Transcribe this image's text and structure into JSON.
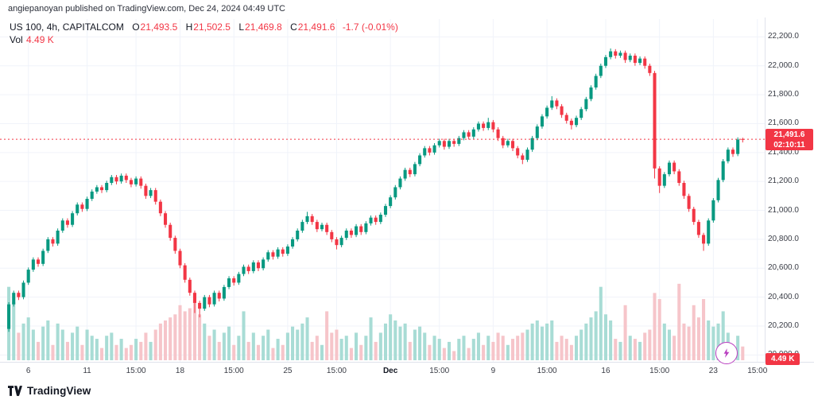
{
  "page": {
    "pub_line": "angiepanoyan published on TradingView.com, Dec 24, 2024 04:49 UTC"
  },
  "legend": {
    "symbol_line": "US 100, 4h, CAPITALCOM",
    "o_label": "O",
    "o": "21,493.5",
    "h_label": "H",
    "h": "21,502.5",
    "l_label": "L",
    "l": "21,469.8",
    "c_label": "C",
    "c": "21,491.6",
    "change": "-1.7 (-0.01%)",
    "vol_label": "Vol",
    "vol_value": "4.49 K"
  },
  "price_axis": {
    "ticks": [
      "22,200.0",
      "22,000.0",
      "21,800.0",
      "21,600.0",
      "21,400.0",
      "21,200.0",
      "21,000.0",
      "20,800.0",
      "20,600.0",
      "20,400.0",
      "20,200.0",
      "20,000.0"
    ]
  },
  "price_marker": {
    "price": "21,491.6",
    "countdown": "02:10:11"
  },
  "volume_marker": "4.49 K",
  "footer": {
    "brand": "TradingView"
  },
  "colors": {
    "up": "#089981",
    "down": "#f23645",
    "vol_up": "#a8dcd5",
    "vol_down": "#f6c5ca",
    "grid": "#f0f3fa",
    "border": "#e0e3eb",
    "axis_text": "#131722",
    "flash_purple": "#b93ec0",
    "marker_red": "#f23645"
  },
  "chart_data": {
    "type": "candlestick+volume",
    "title": "US 100, 4h, CAPITALCOM",
    "symbol": "US 100",
    "timeframe": "4h",
    "exchange": "CAPITALCOM",
    "last_ohlc": {
      "open": 21493.5,
      "high": 21502.5,
      "low": 21469.8,
      "close": 21491.6,
      "change": -1.7,
      "change_pct": -0.01,
      "volume_k": 4.49
    },
    "price_range": [
      19870,
      22290
    ],
    "y_tick_step": 200,
    "slots": 155,
    "vol_max_k": 26,
    "x_labels": [
      {
        "text": "6",
        "slot": 4
      },
      {
        "text": "11",
        "slot": 16
      },
      {
        "text": "15:00",
        "slot": 26
      },
      {
        "text": "18",
        "slot": 35
      },
      {
        "text": "15:00",
        "slot": 46
      },
      {
        "text": "25",
        "slot": 57
      },
      {
        "text": "15:00",
        "slot": 67
      },
      {
        "text": "Dec",
        "slot": 78,
        "bold": true
      },
      {
        "text": "15:00",
        "slot": 88
      },
      {
        "text": "9",
        "slot": 99
      },
      {
        "text": "15:00",
        "slot": 110
      },
      {
        "text": "16",
        "slot": 122
      },
      {
        "text": "15:00",
        "slot": 133
      },
      {
        "text": "23",
        "slot": 144
      },
      {
        "text": "15:00",
        "slot": 153
      }
    ],
    "candles_format": [
      "open",
      "high",
      "low",
      "close",
      "volume_k"
    ],
    "candles": [
      [
        20180,
        20365,
        20160,
        20350,
        24
      ],
      [
        20350,
        20445,
        20335,
        20430,
        19
      ],
      [
        20430,
        20445,
        20380,
        20400,
        9
      ],
      [
        20400,
        20515,
        20385,
        20500,
        12
      ],
      [
        20500,
        20605,
        20485,
        20590,
        14
      ],
      [
        20590,
        20675,
        20575,
        20660,
        10
      ],
      [
        20660,
        20675,
        20610,
        20630,
        6
      ],
      [
        20630,
        20735,
        20615,
        20720,
        11
      ],
      [
        20720,
        20815,
        20705,
        20800,
        13
      ],
      [
        20800,
        20815,
        20750,
        20770,
        5
      ],
      [
        20770,
        20875,
        20755,
        20860,
        12
      ],
      [
        20860,
        20945,
        20845,
        20930,
        10
      ],
      [
        20930,
        20945,
        20880,
        20900,
        6
      ],
      [
        20900,
        20995,
        20885,
        20980,
        9
      ],
      [
        20980,
        21055,
        20965,
        21040,
        11
      ],
      [
        21040,
        21055,
        20990,
        21010,
        5
      ],
      [
        21010,
        21095,
        20995,
        21080,
        10
      ],
      [
        21080,
        21145,
        21065,
        21130,
        8
      ],
      [
        21130,
        21175,
        21115,
        21160,
        7
      ],
      [
        21160,
        21175,
        21120,
        21140,
        4
      ],
      [
        21140,
        21205,
        21125,
        21190,
        8
      ],
      [
        21190,
        21245,
        21175,
        21230,
        9
      ],
      [
        21230,
        21245,
        21180,
        21200,
        5
      ],
      [
        21200,
        21255,
        21185,
        21240,
        7
      ],
      [
        21240,
        21255,
        21190,
        21210,
        4
      ],
      [
        21210,
        21225,
        21160,
        21180,
        5
      ],
      [
        21180,
        21235,
        21165,
        21220,
        7
      ],
      [
        21220,
        21235,
        21150,
        21170,
        6
      ],
      [
        21170,
        21185,
        21080,
        21100,
        9
      ],
      [
        21100,
        21155,
        21085,
        21140,
        6
      ],
      [
        21140,
        21155,
        21040,
        21060,
        10
      ],
      [
        21060,
        21075,
        20960,
        20980,
        12
      ],
      [
        20980,
        20995,
        20880,
        20900,
        13
      ],
      [
        20900,
        20915,
        20790,
        20810,
        14
      ],
      [
        20810,
        20825,
        20700,
        20720,
        15
      ],
      [
        20720,
        20735,
        20600,
        20620,
        18
      ],
      [
        20620,
        20635,
        20500,
        20520,
        16
      ],
      [
        20520,
        20535,
        20410,
        20430,
        17
      ],
      [
        20430,
        20445,
        20290,
        20360,
        20
      ],
      [
        20360,
        20375,
        20260,
        20320,
        15
      ],
      [
        20320,
        20415,
        20305,
        20400,
        12
      ],
      [
        20400,
        20415,
        20330,
        20350,
        8
      ],
      [
        20350,
        20445,
        20335,
        20430,
        10
      ],
      [
        20430,
        20445,
        20370,
        20390,
        6
      ],
      [
        20390,
        20485,
        20375,
        20470,
        9
      ],
      [
        20470,
        20545,
        20455,
        20530,
        11
      ],
      [
        20530,
        20545,
        20480,
        20500,
        5
      ],
      [
        20500,
        20575,
        20485,
        20560,
        8
      ],
      [
        20560,
        20625,
        20545,
        20610,
        16
      ],
      [
        20610,
        20625,
        20560,
        20580,
        6
      ],
      [
        20580,
        20655,
        20565,
        20640,
        9
      ],
      [
        20640,
        20655,
        20580,
        20600,
        5
      ],
      [
        20600,
        20675,
        20585,
        20660,
        8
      ],
      [
        20660,
        20725,
        20645,
        20710,
        10
      ],
      [
        20710,
        20725,
        20660,
        20680,
        4
      ],
      [
        20680,
        20745,
        20665,
        20730,
        7
      ],
      [
        20730,
        20745,
        20680,
        20700,
        5
      ],
      [
        20700,
        20765,
        20685,
        20750,
        9
      ],
      [
        20750,
        20815,
        20735,
        20800,
        11
      ],
      [
        20800,
        20875,
        20785,
        20860,
        10
      ],
      [
        20860,
        20935,
        20845,
        20920,
        12
      ],
      [
        20920,
        20990,
        20905,
        20960,
        14
      ],
      [
        20960,
        20975,
        20900,
        20920,
        6
      ],
      [
        20920,
        20935,
        20850,
        20870,
        8
      ],
      [
        20870,
        20915,
        20855,
        20900,
        5
      ],
      [
        20900,
        20915,
        20830,
        20850,
        16
      ],
      [
        20850,
        20865,
        20780,
        20800,
        9
      ],
      [
        20800,
        20815,
        20730,
        20760,
        10
      ],
      [
        20760,
        20825,
        20745,
        20810,
        7
      ],
      [
        20810,
        20875,
        20795,
        20860,
        8
      ],
      [
        20860,
        20875,
        20810,
        20830,
        4
      ],
      [
        20830,
        20905,
        20815,
        20890,
        9
      ],
      [
        20890,
        20905,
        20830,
        20850,
        5
      ],
      [
        20850,
        20925,
        20835,
        20910,
        8
      ],
      [
        20910,
        20965,
        20895,
        20950,
        14
      ],
      [
        20950,
        20965,
        20900,
        20920,
        6
      ],
      [
        20920,
        20985,
        20905,
        20970,
        9
      ],
      [
        20970,
        21045,
        20955,
        21030,
        12
      ],
      [
        21030,
        21105,
        21015,
        21090,
        15
      ],
      [
        21090,
        21175,
        21075,
        21160,
        13
      ],
      [
        21160,
        21235,
        21145,
        21220,
        11
      ],
      [
        21220,
        21295,
        21205,
        21280,
        12
      ],
      [
        21280,
        21295,
        21230,
        21250,
        6
      ],
      [
        21250,
        21335,
        21235,
        21320,
        10
      ],
      [
        21320,
        21395,
        21305,
        21380,
        11
      ],
      [
        21380,
        21445,
        21365,
        21430,
        9
      ],
      [
        21430,
        21445,
        21380,
        21400,
        5
      ],
      [
        21400,
        21465,
        21385,
        21450,
        8
      ],
      [
        21450,
        21495,
        21435,
        21480,
        7
      ],
      [
        21480,
        21495,
        21420,
        21440,
        4
      ],
      [
        21440,
        21495,
        21425,
        21480,
        6
      ],
      [
        21480,
        21495,
        21440,
        21460,
        3
      ],
      [
        21460,
        21515,
        21445,
        21500,
        7
      ],
      [
        21500,
        21555,
        21485,
        21540,
        8
      ],
      [
        21540,
        21555,
        21490,
        21510,
        4
      ],
      [
        21510,
        21575,
        21495,
        21560,
        7
      ],
      [
        21560,
        21615,
        21545,
        21600,
        9
      ],
      [
        21600,
        21615,
        21550,
        21570,
        5
      ],
      [
        21570,
        21640,
        21555,
        21610,
        8
      ],
      [
        21610,
        21625,
        21540,
        21560,
        6
      ],
      [
        21560,
        21575,
        21480,
        21500,
        9
      ],
      [
        21500,
        21515,
        21430,
        21450,
        8
      ],
      [
        21450,
        21495,
        21435,
        21480,
        5
      ],
      [
        21480,
        21495,
        21410,
        21430,
        7
      ],
      [
        21430,
        21445,
        21360,
        21380,
        8
      ],
      [
        21380,
        21395,
        21320,
        21350,
        9
      ],
      [
        21350,
        21435,
        21335,
        21420,
        10
      ],
      [
        21420,
        21515,
        21405,
        21500,
        12
      ],
      [
        21500,
        21595,
        21485,
        21580,
        13
      ],
      [
        21580,
        21665,
        21565,
        21650,
        11
      ],
      [
        21650,
        21725,
        21635,
        21710,
        12
      ],
      [
        21710,
        21790,
        21695,
        21760,
        13
      ],
      [
        21760,
        21775,
        21700,
        21720,
        6
      ],
      [
        21720,
        21735,
        21640,
        21660,
        8
      ],
      [
        21660,
        21675,
        21600,
        21620,
        7
      ],
      [
        21620,
        21635,
        21560,
        21590,
        5
      ],
      [
        21590,
        21655,
        21575,
        21640,
        8
      ],
      [
        21640,
        21715,
        21625,
        21700,
        10
      ],
      [
        21700,
        21785,
        21685,
        21770,
        12
      ],
      [
        21770,
        21865,
        21755,
        21850,
        14
      ],
      [
        21850,
        21945,
        21835,
        21930,
        16
      ],
      [
        21930,
        22015,
        21915,
        22000,
        24
      ],
      [
        22000,
        22075,
        21985,
        22060,
        15
      ],
      [
        22060,
        22120,
        22045,
        22100,
        13
      ],
      [
        22100,
        22115,
        22050,
        22070,
        7
      ],
      [
        22070,
        22105,
        22055,
        22090,
        6
      ],
      [
        22090,
        22105,
        22020,
        22040,
        18
      ],
      [
        22040,
        22085,
        22025,
        22070,
        8
      ],
      [
        22070,
        22085,
        22000,
        22020,
        7
      ],
      [
        22020,
        22065,
        22005,
        22050,
        6
      ],
      [
        22050,
        22065,
        21980,
        22000,
        9
      ],
      [
        22000,
        22015,
        21930,
        21950,
        10
      ],
      [
        21950,
        21965,
        21220,
        21290,
        22
      ],
      [
        21290,
        21305,
        21120,
        21170,
        20
      ],
      [
        21170,
        21265,
        21155,
        21250,
        12
      ],
      [
        21250,
        21345,
        21235,
        21330,
        10
      ],
      [
        21330,
        21345,
        21250,
        21270,
        8
      ],
      [
        21270,
        21285,
        21170,
        21190,
        25
      ],
      [
        21190,
        21205,
        21080,
        21100,
        12
      ],
      [
        21100,
        21115,
        20990,
        21010,
        11
      ],
      [
        21010,
        21025,
        20900,
        20920,
        18
      ],
      [
        20920,
        20935,
        20810,
        20830,
        14
      ],
      [
        20830,
        20845,
        20720,
        20770,
        20
      ],
      [
        20770,
        20945,
        20755,
        20930,
        13
      ],
      [
        20930,
        21085,
        20915,
        21070,
        11
      ],
      [
        21070,
        21225,
        21055,
        21210,
        12
      ],
      [
        21210,
        21355,
        21195,
        21340,
        16
      ],
      [
        21340,
        21435,
        21325,
        21420,
        9
      ],
      [
        21420,
        21435,
        21370,
        21390,
        5
      ],
      [
        21390,
        21505,
        21375,
        21490,
        8
      ],
      [
        21493.5,
        21502.5,
        21469.8,
        21491.6,
        4.49
      ]
    ]
  }
}
